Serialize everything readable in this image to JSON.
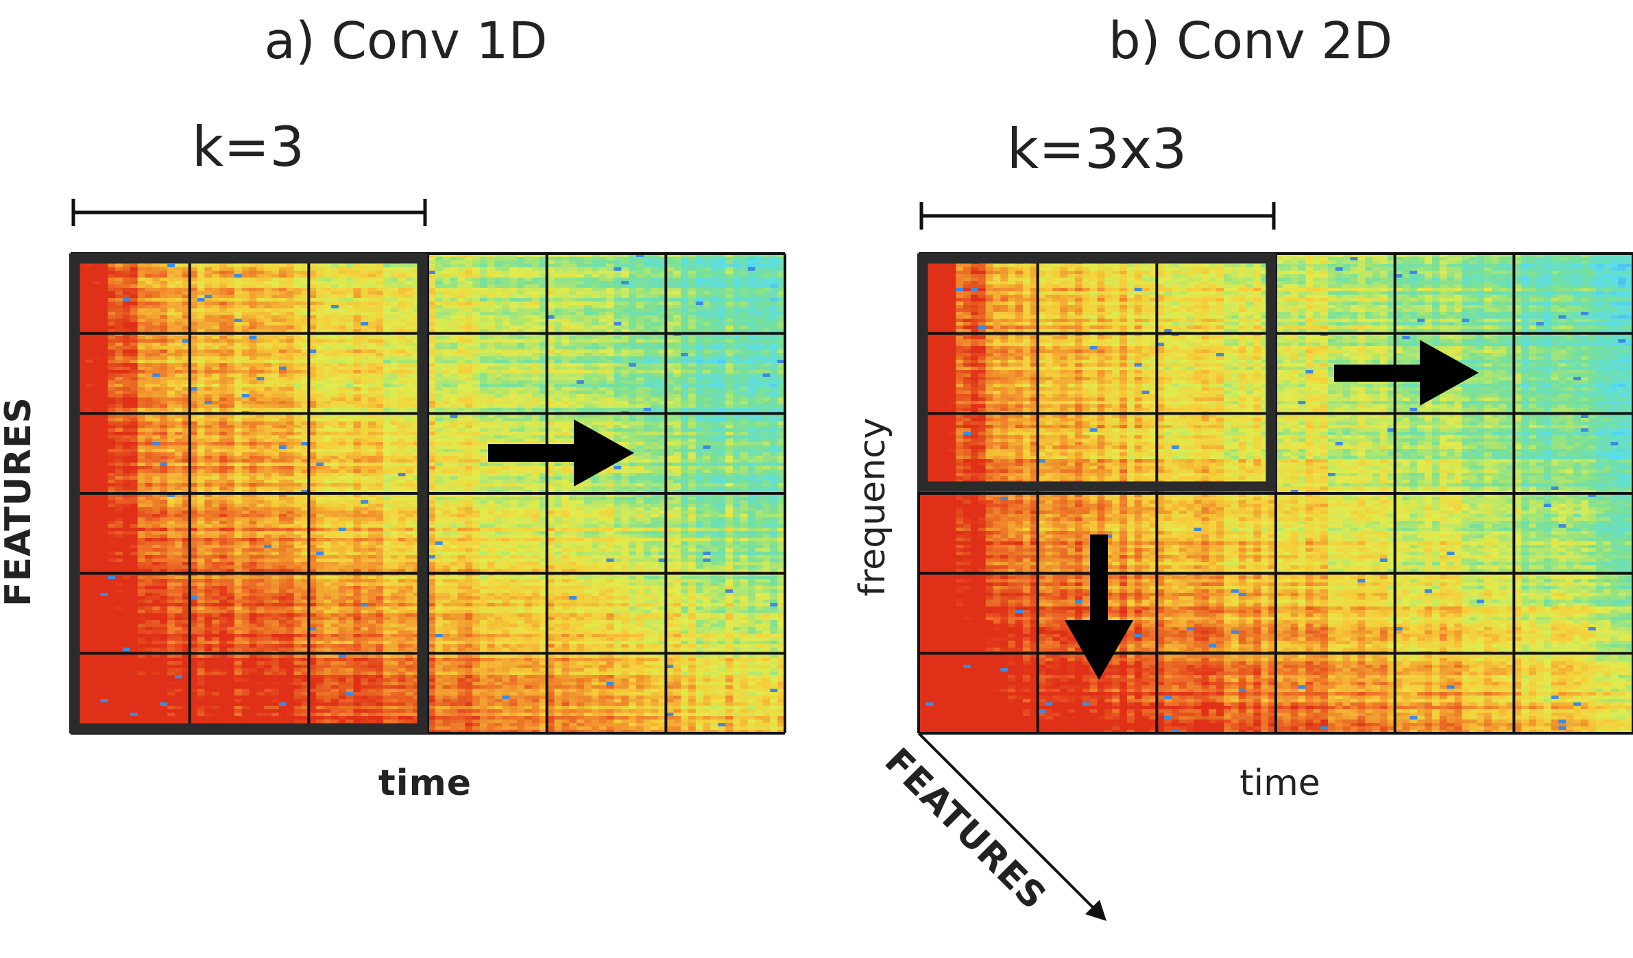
{
  "panels": [
    {
      "id": "conv1d",
      "title": "a) Conv 1D",
      "kernel_label": "k=3",
      "x_axis_label": "time",
      "y_axis_label": "FEATURES",
      "grid": {
        "rows": 6,
        "cols": 6
      },
      "kernel_window": {
        "rows": 6,
        "cols": 3
      },
      "sliding_directions": [
        "right"
      ]
    },
    {
      "id": "conv2d",
      "title": "b) Conv 2D",
      "kernel_label": "k=3x3",
      "x_axis_label": "time",
      "y_axis_label": "frequency",
      "depth_axis_label": "FEATURES",
      "grid": {
        "rows": 6,
        "cols": 6
      },
      "kernel_window": {
        "rows": 3,
        "cols": 3
      },
      "sliding_directions": [
        "right",
        "down"
      ]
    }
  ],
  "colors": {
    "text": "#222222",
    "grid_line": "#111111",
    "kernel_frame": "#2b2b2b",
    "arrow": "#000000",
    "spectrogram_low": "#3a7fe0",
    "spectrogram_mid": "#dfe84c",
    "spectrogram_high": "#e8331c"
  }
}
